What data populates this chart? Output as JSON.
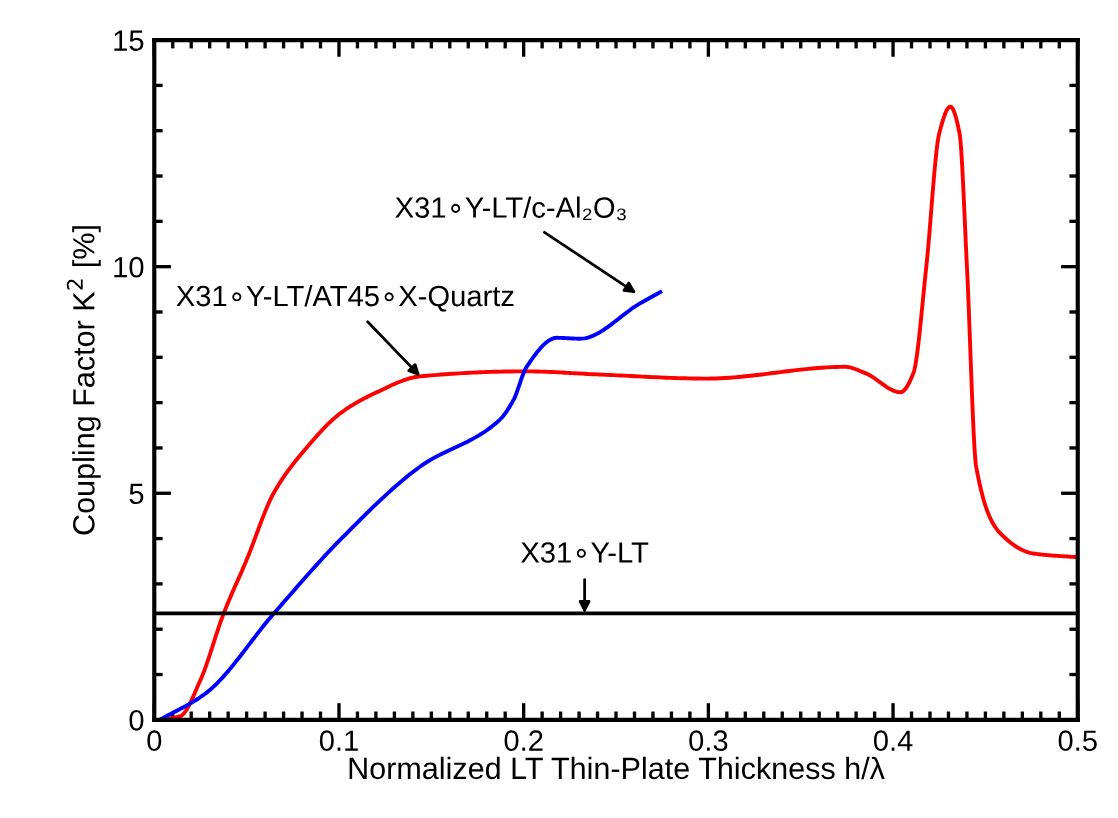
{
  "chart_data": {
    "type": "line",
    "xlabel": "Normalized LT Thin-Plate Thickness h/λ",
    "ylabel": "Coupling Factor K$^{2}$ [%]",
    "xlim": [
      0,
      0.5
    ],
    "ylim": [
      0,
      15
    ],
    "xticks": [
      0,
      0.1,
      0.2,
      0.3,
      0.4,
      0.5
    ],
    "yticks": [
      0,
      5,
      10,
      15
    ],
    "grid": false,
    "legend": false,
    "marker": "none",
    "line_style": "solid",
    "series": [
      {
        "color": "#ff0000",
        "x": [
          0.003,
          0.014,
          0.025,
          0.0375,
          0.05,
          0.0646,
          0.083,
          0.1006,
          0.119,
          0.144,
          0.201,
          0.241,
          0.299,
          0.374,
          0.385,
          0.404,
          0.411,
          0.418,
          0.425,
          0.431,
          0.436,
          0.44,
          0.445,
          0.458,
          0.476,
          0.499
        ],
        "values": [
          0,
          0.08,
          0.88,
          2.34,
          3.53,
          5.0,
          6.03,
          6.76,
          7.2,
          7.58,
          7.69,
          7.62,
          7.53,
          7.79,
          7.65,
          7.23,
          7.65,
          10.0,
          12.94,
          13.53,
          12.94,
          10.0,
          5.59,
          4.12,
          3.67,
          3.59
        ]
      },
      {
        "color": "#0000ff",
        "x": [
          0.003,
          0.028,
          0.0646,
          0.1006,
          0.144,
          0.187,
          0.1945,
          0.2016,
          0.218,
          0.2305,
          0.263,
          0.274
        ],
        "values": [
          0,
          0.59,
          2.34,
          3.97,
          5.59,
          6.62,
          7.06,
          7.79,
          8.43,
          8.41,
          9.19,
          9.44
        ]
      },
      {
        "color": "#000000",
        "x": [
          0,
          0.5
        ],
        "values": [
          2.35,
          2.35
        ]
      }
    ],
    "annotations": [
      {
        "text": "X31∘Y-LT/c-Al₂O₃",
        "x": 0.261,
        "y": 9.41
      },
      {
        "text": "X31∘Y-LT/AT45∘X-Quartz",
        "x": 0.144,
        "y": 7.58
      },
      {
        "text": "X31∘Y-LT",
        "x": 0.233,
        "y": 2.35
      }
    ]
  }
}
